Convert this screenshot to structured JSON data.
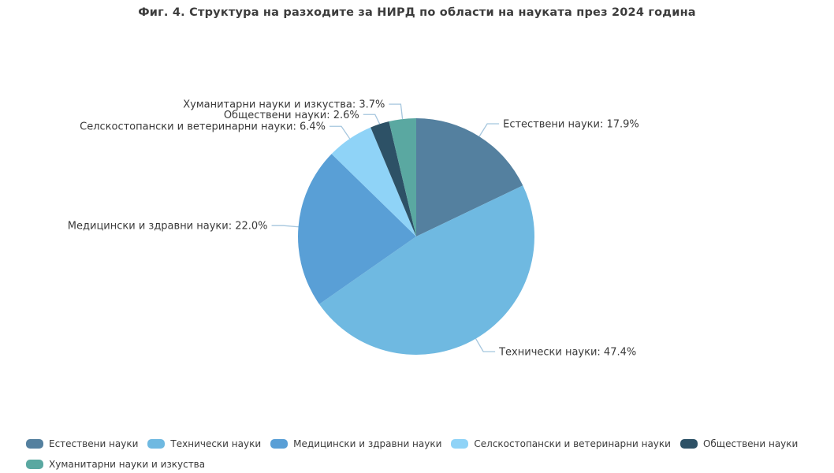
{
  "title": "Фиг. 4. Структура на разходите за НИРД по области на науката през 2024 година",
  "chart_data": {
    "type": "pie",
    "title": "Фиг. 4. Структура на разходите за НИРД по области на науката през 2024 година",
    "start_angle": "top",
    "direction": "clockwise",
    "legend_position": "bottom",
    "label_color": "#3a3a3a",
    "leader_line_color": "#a5c6de",
    "slices": [
      {
        "name": "Естествени науки",
        "value": 17.9,
        "label": "Естествени науки: 17.9%",
        "color": "#54809f"
      },
      {
        "name": "Технически науки",
        "value": 47.4,
        "label": "Технически науки: 47.4%",
        "color": "#6fb9e1"
      },
      {
        "name": "Медицински и здравни науки",
        "value": 22.0,
        "label": "Медицински и здравни науки: 22.0%",
        "color": "#599fd6"
      },
      {
        "name": "Селскостопански и ветеринарни науки",
        "value": 6.4,
        "label": "Селскостопански и ветеринарни науки: 6.4%",
        "color": "#8fd3f7"
      },
      {
        "name": "Обществени науки",
        "value": 2.6,
        "label": "Обществени науки: 2.6%",
        "color": "#2d5166"
      },
      {
        "name": "Хуманитарни науки и изкуства",
        "value": 3.7,
        "label": "Хуманитарни науки и изкуства: 3.7%",
        "color": "#5aa8a1"
      }
    ]
  }
}
